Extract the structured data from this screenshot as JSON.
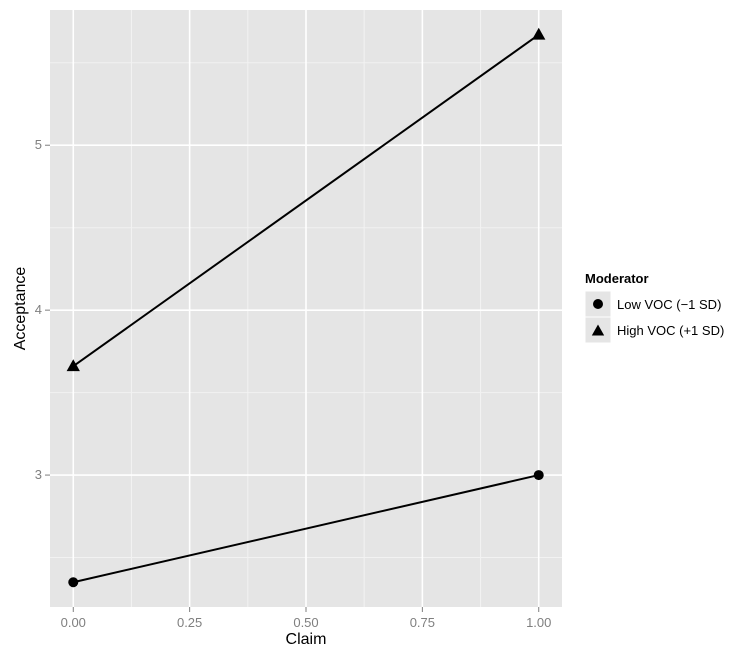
{
  "chart_data": {
    "type": "line",
    "xlabel": "Claim",
    "ylabel": "Acceptance",
    "x_ticks": [
      "0.00",
      "0.25",
      "0.50",
      "0.75",
      "1.00"
    ],
    "x_tick_values": [
      0,
      0.25,
      0.5,
      0.75,
      1
    ],
    "y_ticks": [
      "3",
      "4",
      "5"
    ],
    "y_tick_values": [
      3,
      4,
      5
    ],
    "xlim": [
      -0.05,
      1.05
    ],
    "ylim": [
      2.2,
      5.82
    ],
    "grid": true,
    "legend": {
      "title": "Moderator",
      "placement": "right",
      "entries": [
        {
          "label": "Low VOC (−1 SD)",
          "marker": "circle"
        },
        {
          "label": "High VOC (+1 SD)",
          "marker": "triangle"
        }
      ]
    },
    "series": [
      {
        "name": "Low VOC (−1 SD)",
        "marker": "circle",
        "x": [
          0,
          1
        ],
        "y": [
          2.35,
          3.0
        ]
      },
      {
        "name": "High VOC (+1 SD)",
        "marker": "triangle",
        "x": [
          0,
          1
        ],
        "y": [
          3.66,
          5.67
        ]
      }
    ],
    "colors": {
      "panel_background": "#e5e5e5",
      "grid_major": "#ffffff",
      "grid_minor": "#f2f2f2",
      "lines": "#000000",
      "tick_labels": "#7f7f7f",
      "legend_key_background": "#e5e5e5"
    }
  }
}
